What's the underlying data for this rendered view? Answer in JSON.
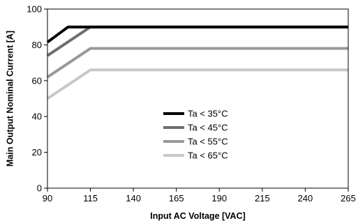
{
  "chart_data": {
    "type": "line",
    "title": "",
    "xlabel": "Input AC Voltage [VAC]",
    "ylabel": "Main Output Nominal Current [A]",
    "xlim": [
      90,
      265
    ],
    "ylim": [
      0,
      100
    ],
    "xticks": [
      90,
      115,
      140,
      165,
      190,
      215,
      240,
      265
    ],
    "yticks": [
      0,
      20,
      40,
      60,
      80,
      100
    ],
    "grid": false,
    "legend_position": "center",
    "series": [
      {
        "name": "Ta < 35°C",
        "color": "#000000",
        "x": [
          90,
          102,
          115,
          265
        ],
        "y": [
          81.5,
          90,
          90,
          90
        ]
      },
      {
        "name": "Ta < 45°C",
        "color": "#6e6e6e",
        "x": [
          90,
          115,
          265
        ],
        "y": [
          74,
          90,
          90
        ]
      },
      {
        "name": "Ta < 55°C",
        "color": "#999999",
        "x": [
          90,
          115,
          265
        ],
        "y": [
          62,
          78,
          78
        ]
      },
      {
        "name": "Ta < 65°C",
        "color": "#c8c8c8",
        "x": [
          90,
          115,
          265
        ],
        "y": [
          50,
          66,
          66
        ]
      }
    ]
  }
}
